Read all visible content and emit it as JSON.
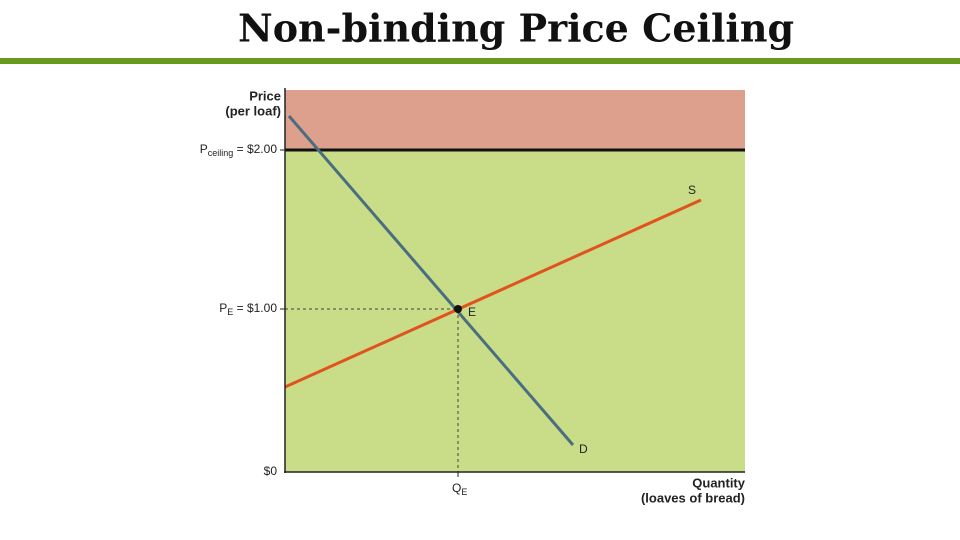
{
  "title": "Non-binding Price Ceiling",
  "y_axis": {
    "label_lines": [
      "Price",
      "(per loaf)"
    ]
  },
  "x_axis": {
    "label_lines": [
      "Quantity",
      "(loaves of bread)"
    ]
  },
  "price_labels": {
    "ceiling": {
      "symbol": "P",
      "subscript": "ceiling",
      "text": " = $2.00"
    },
    "equilibrium": {
      "symbol": "P",
      "subscript": "E",
      "text": " = $1.00"
    },
    "zero": "$0"
  },
  "quantity_label": {
    "symbol": "Q",
    "subscript": "E"
  },
  "curves": {
    "supply": "S",
    "demand": "D",
    "equilibrium": "E"
  }
}
